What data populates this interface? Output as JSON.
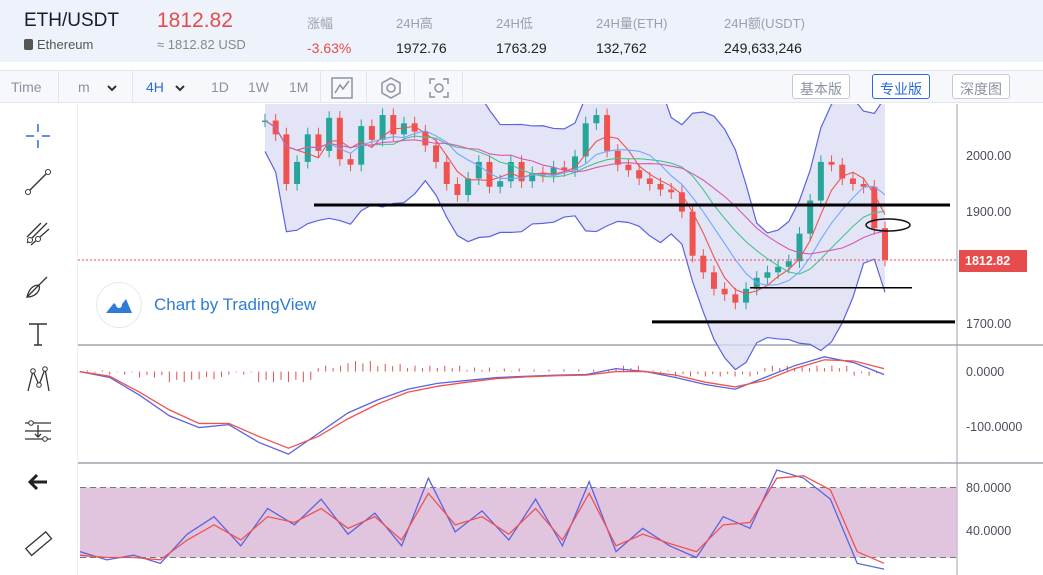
{
  "header": {
    "pair": "ETH/USDT",
    "coin_name": "Ethereum",
    "price": "1812.82",
    "price_approx": "≈ 1812.82 USD",
    "stats": [
      {
        "label": "涨幅",
        "value": "-3.63%"
      },
      {
        "label": "24H高",
        "value": "1972.76"
      },
      {
        "label": "24H低",
        "value": "1763.29"
      },
      {
        "label": "24H量(ETH)",
        "value": "132,762"
      },
      {
        "label": "24H额(USDT)",
        "value": "249,633,246"
      }
    ]
  },
  "toolbar": {
    "time_label": "Time",
    "minute_select": "m",
    "interval_select": "4H",
    "intervals": [
      "1D",
      "1W",
      "1M"
    ],
    "icons": [
      "chart-type-icon",
      "settings-icon",
      "screenshot-icon"
    ],
    "views": [
      "基本版",
      "专业版",
      "深度图"
    ],
    "active_view": "专业版"
  },
  "tools": [
    "crosshair-icon",
    "trendline-icon",
    "pitchfork-icon",
    "brush-icon",
    "text-icon",
    "pattern-icon",
    "fib-icon",
    "back-arrow-icon",
    "ruler-icon"
  ],
  "watermark": {
    "text": "Chart by TradingView"
  },
  "colors": {
    "up": "#26a69a",
    "down": "#ef5350",
    "accent": "#2a6bdc",
    "price_tag": "#e64c4c",
    "band_fill": "#d9dcf4",
    "rsi_zone": "#dcbad8"
  },
  "chart_data": [
    {
      "type": "line",
      "title": "ETH/USDT 4H",
      "price_axis": [
        "2000.00",
        "1900.00",
        "1700.00"
      ],
      "last_price": "1812.82",
      "ylim": [
        1660,
        2095
      ],
      "close_series": [
        {
          "name": "",
          "values": [
            2065,
            2040,
            1950,
            1990,
            2040,
            2010,
            2070,
            1995,
            1985,
            2055,
            2030,
            2075,
            2040,
            2060,
            2045,
            2020,
            1990,
            1950,
            1930,
            1960,
            1990,
            1945,
            1955,
            1990,
            1955,
            1970,
            1965,
            1980,
            1975,
            2000,
            2060,
            2075,
            2010,
            1985,
            1975,
            1960,
            1950,
            1940,
            1935,
            1900,
            1820,
            1790,
            1760,
            1750,
            1735,
            1760,
            1780,
            1790,
            1800,
            1810,
            1860,
            1920,
            1990,
            1985,
            1960,
            1950,
            1945,
            1870,
            1812.82
          ]
        }
      ],
      "horizontal_levels": [
        1912,
        1700,
        1762
      ]
    },
    {
      "type": "line",
      "title": "",
      "axis_labels": [
        "0.0000",
        "-100.0000"
      ],
      "ylim": [
        -150,
        40
      ],
      "series": [
        {
          "name": "",
          "values": [
            0,
            -10,
            -40,
            -75,
            -95,
            -90,
            -120,
            -140,
            -105,
            -70,
            -48,
            -30,
            -20,
            -15,
            -10,
            -8,
            -6,
            -5,
            5,
            0,
            -10,
            -22,
            -30,
            -10,
            10,
            25,
            15,
            -5
          ]
        },
        {
          "name": "",
          "values": [
            0,
            -8,
            -35,
            -65,
            -88,
            -88,
            -110,
            -130,
            -110,
            -80,
            -55,
            -35,
            -25,
            -18,
            -12,
            -9,
            -7,
            -6,
            0,
            0,
            -6,
            -18,
            -26,
            -15,
            5,
            20,
            18,
            5
          ]
        }
      ]
    },
    {
      "type": "line",
      "title": "",
      "axis_labels": [
        "80.0000",
        "40.0000"
      ],
      "ylim": [
        0,
        100
      ],
      "overbought": 80,
      "oversold": 20,
      "series": [
        {
          "name": "",
          "values": [
            25,
            18,
            22,
            15,
            40,
            55,
            30,
            62,
            48,
            70,
            40,
            58,
            30,
            88,
            42,
            60,
            35,
            70,
            30,
            85,
            25,
            45,
            30,
            20,
            55,
            45,
            95,
            88,
            70,
            15,
            10
          ]
        },
        {
          "name": "",
          "values": [
            22,
            20,
            20,
            18,
            35,
            48,
            35,
            55,
            50,
            62,
            45,
            55,
            35,
            75,
            48,
            55,
            40,
            62,
            35,
            75,
            30,
            40,
            32,
            25,
            48,
            50,
            88,
            90,
            78,
            25,
            15
          ]
        }
      ]
    }
  ]
}
